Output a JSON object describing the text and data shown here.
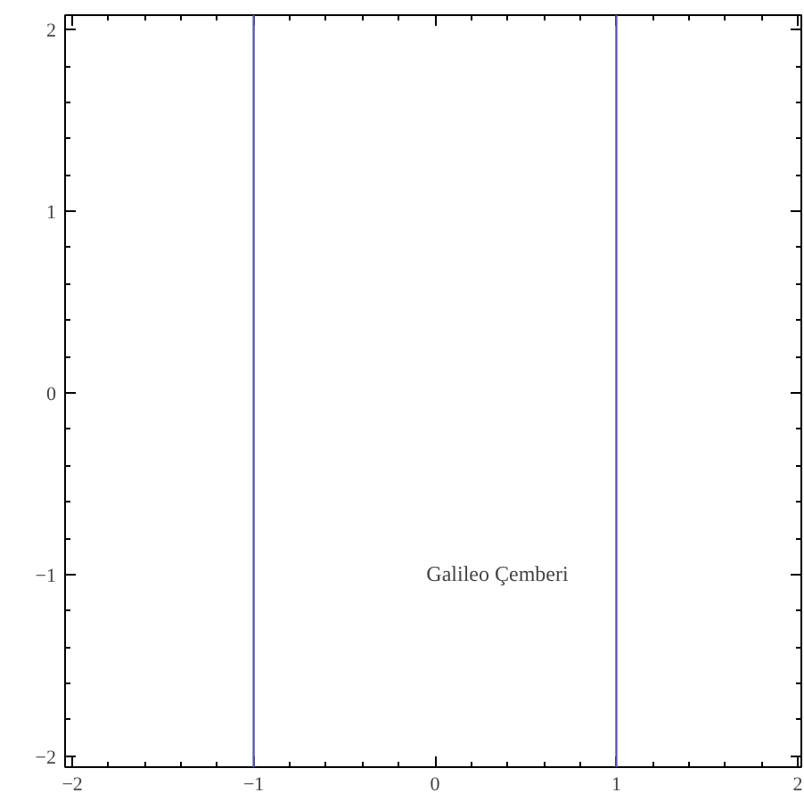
{
  "chart_data": {
    "type": "line",
    "xlim": [
      -2.04,
      2.02
    ],
    "ylim": [
      -2.06,
      2.08
    ],
    "xticks": [
      {
        "value": -2,
        "label": "−2"
      },
      {
        "value": -1,
        "label": "−1"
      },
      0,
      1,
      2
    ],
    "yticks": [
      {
        "value": -2,
        "label": "−2"
      },
      {
        "value": -1,
        "label": "−1"
      },
      0,
      1,
      2
    ],
    "ref_lines": [
      {
        "axis": "x",
        "value": -1,
        "color": "#5a5aa8",
        "line_style": "solid"
      },
      {
        "axis": "x",
        "value": 1,
        "color": "#5a5aa8",
        "line_style": "solid"
      }
    ],
    "annotations": [
      "Galileo Çemberi"
    ],
    "grid": false
  }
}
